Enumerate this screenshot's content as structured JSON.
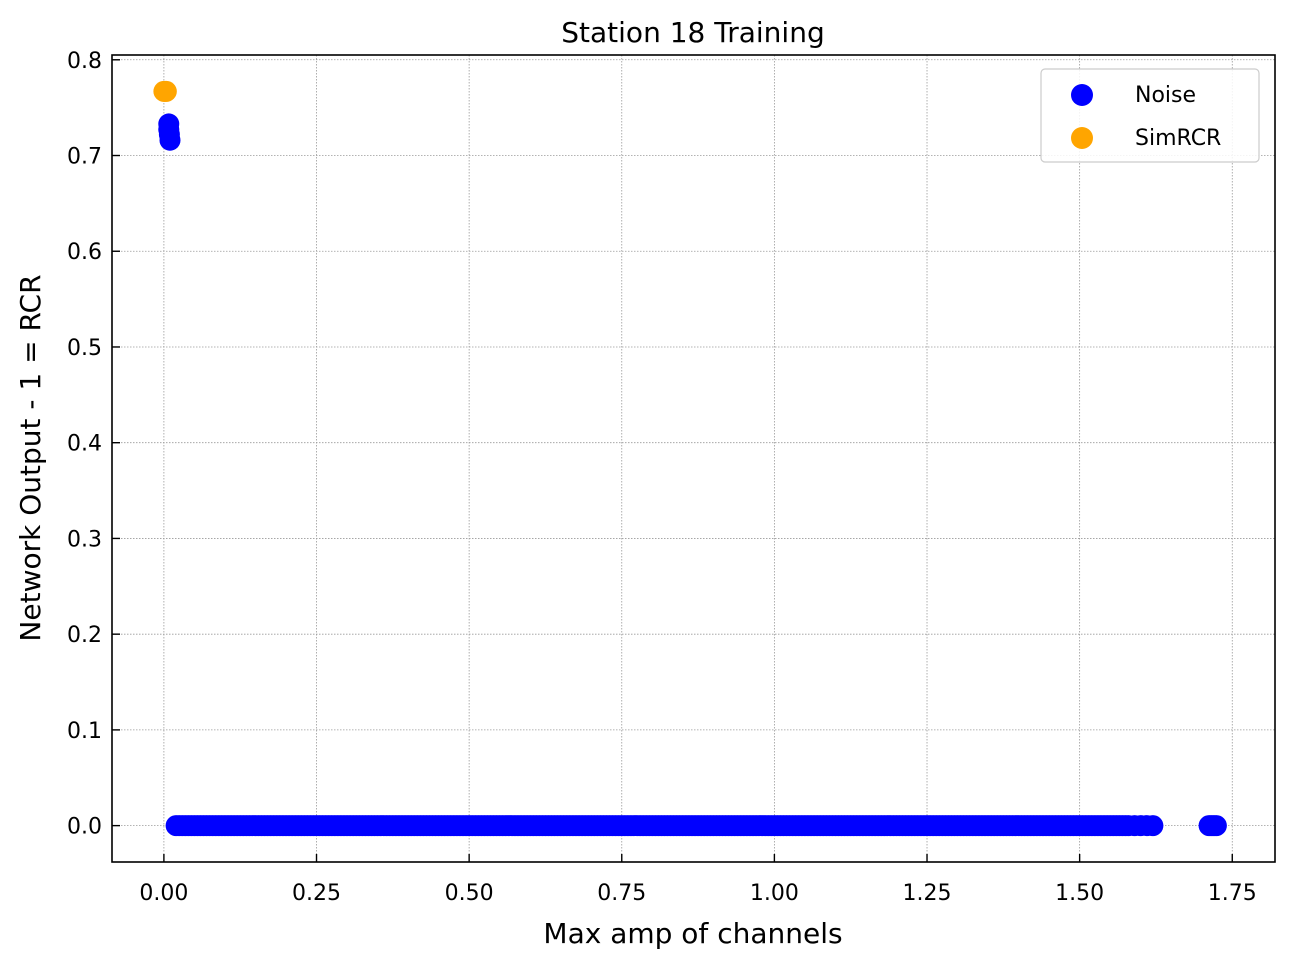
{
  "chart_data": {
    "type": "scatter",
    "title": "Station 18 Training",
    "xlabel": "Max amp of channels",
    "ylabel": "Network Output - 1 = RCR",
    "xlim": [
      -0.085,
      1.82
    ],
    "ylim": [
      -0.038,
      0.805
    ],
    "xticks": [
      0.0,
      0.25,
      0.5,
      0.75,
      1.0,
      1.25,
      1.5,
      1.75
    ],
    "xtick_labels": [
      "0.00",
      "0.25",
      "0.50",
      "0.75",
      "1.00",
      "1.25",
      "1.50",
      "1.75"
    ],
    "yticks": [
      0.0,
      0.1,
      0.2,
      0.3,
      0.4,
      0.5,
      0.6,
      0.7,
      0.8
    ],
    "ytick_labels": [
      "0.0",
      "0.1",
      "0.2",
      "0.3",
      "0.4",
      "0.5",
      "0.6",
      "0.7",
      "0.8"
    ],
    "grid": true,
    "legend_position": "top-right",
    "series": [
      {
        "name": "Noise",
        "color": "#0000ff",
        "band": {
          "x_start": 0.02,
          "x_end": 1.575,
          "step": 0.005,
          "y": 0.0
        },
        "points": [
          [
            0.008,
            0.733
          ],
          [
            0.008,
            0.727
          ],
          [
            0.009,
            0.722
          ],
          [
            0.01,
            0.716
          ],
          [
            1.58,
            0.0
          ],
          [
            1.59,
            0.0
          ],
          [
            1.6,
            0.0
          ],
          [
            1.61,
            0.0
          ],
          [
            1.62,
            0.0
          ],
          [
            1.712,
            0.0
          ],
          [
            1.716,
            0.0
          ],
          [
            1.72,
            0.0
          ],
          [
            1.724,
            0.0
          ]
        ]
      },
      {
        "name": "SimRCR",
        "color": "#ffa500",
        "points": [
          [
            0.0,
            0.767
          ],
          [
            0.002,
            0.767
          ],
          [
            0.004,
            0.767
          ]
        ]
      }
    ]
  }
}
